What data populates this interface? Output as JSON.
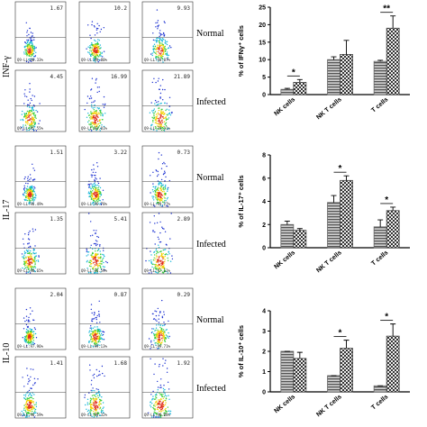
{
  "flow_panels": [
    {
      "marker": "INF-γ",
      "rows": [
        {
          "condition": "Normal",
          "cells": [
            {
              "upper": "1.67",
              "lower": "Q9-LL:98.33%"
            },
            {
              "upper": "10.2",
              "lower": "Q9-LL:89.80%"
            },
            {
              "upper": "9.93",
              "lower": "Q9-LL:90.07%"
            }
          ]
        },
        {
          "condition": "Infected",
          "cells": [
            {
              "upper": "4.45",
              "lower": "Q9-LL:95.55%"
            },
            {
              "upper": "16.99",
              "lower": "Q9-LL:83.01%"
            },
            {
              "upper": "21.89",
              "lower": "Q9-LL:78.11%"
            }
          ]
        }
      ]
    },
    {
      "marker": "IL-17",
      "rows": [
        {
          "condition": "Normal",
          "cells": [
            {
              "upper": "1.51",
              "lower": "Q9-LL:98.49%"
            },
            {
              "upper": "3.22",
              "lower": "Q9-LL:96.78%"
            },
            {
              "upper": "0.73",
              "lower": "Q9-LL:99.27%"
            }
          ]
        },
        {
          "condition": "Infected",
          "cells": [
            {
              "upper": "1.35",
              "lower": "Q9-LL:98.65%"
            },
            {
              "upper": "5.41",
              "lower": "Q9-LL:94.59%"
            },
            {
              "upper": "2.89",
              "lower": "Q9-LL:97.11%"
            }
          ]
        }
      ]
    },
    {
      "marker": "IL-10",
      "rows": [
        {
          "condition": "Normal",
          "cells": [
            {
              "upper": "2.04",
              "lower": "Q9-LL:97.96%"
            },
            {
              "upper": "0.87",
              "lower": "Q9-LL:99.13%"
            },
            {
              "upper": "0.29",
              "lower": "Q9-LL:99.71%"
            }
          ]
        },
        {
          "condition": "Infected",
          "cells": [
            {
              "upper": "1.41",
              "lower": "Q9-LL:98.59%"
            },
            {
              "upper": "1.68",
              "lower": "Q9-LL:98.32%"
            },
            {
              "upper": "1.92",
              "lower": "Q9-LL:98.08%"
            }
          ]
        }
      ]
    }
  ],
  "chart_data": [
    {
      "type": "bar",
      "y_label": "% of IFNγ⁺ cells",
      "categories": [
        "NK cells",
        "NK T cells",
        "T cells"
      ],
      "series": [
        {
          "color": "#666666",
          "values": [
            1.5,
            10,
            9.5
          ],
          "errors": [
            0.3,
            0.8,
            0.3
          ]
        },
        {
          "color": "#444444",
          "values": [
            3.5,
            11.5,
            19
          ],
          "errors": [
            0.8,
            4,
            3.5
          ]
        }
      ],
      "ylim": [
        0,
        25
      ],
      "yticks": [
        0,
        5,
        10,
        15,
        20,
        25
      ],
      "annotations": [
        {
          "text": "*",
          "category": "NK cells"
        },
        {
          "text": "**",
          "category": "T cells"
        }
      ]
    },
    {
      "type": "bar",
      "y_label": "% of IL-17⁺ cells",
      "categories": [
        "NK cells",
        "NK T cells",
        "T cells"
      ],
      "series": [
        {
          "color": "#666666",
          "values": [
            2.0,
            3.9,
            1.8
          ],
          "errors": [
            0.3,
            0.6,
            0.6
          ]
        },
        {
          "color": "#444444",
          "values": [
            1.5,
            5.8,
            3.2
          ],
          "errors": [
            0.15,
            0.4,
            0.3
          ]
        }
      ],
      "ylim": [
        0,
        8
      ],
      "yticks": [
        0,
        2,
        4,
        6,
        8
      ],
      "annotations": [
        {
          "text": "*",
          "category": "NK T cells"
        },
        {
          "text": "*",
          "category": "T cells"
        }
      ]
    },
    {
      "type": "bar",
      "y_label": "% of IL-10⁺ cells",
      "categories": [
        "NK cells",
        "NK T cells",
        "T cells"
      ],
      "series": [
        {
          "color": "#666666",
          "values": [
            2.0,
            0.8,
            0.3
          ],
          "errors": [
            0,
            0,
            0
          ]
        },
        {
          "color": "#444444",
          "values": [
            1.65,
            2.15,
            2.75
          ],
          "errors": [
            0.3,
            0.4,
            0.6
          ]
        }
      ],
      "ylim": [
        0,
        4
      ],
      "yticks": [
        0,
        1,
        2,
        3,
        4
      ],
      "annotations": [
        {
          "text": "*",
          "category": "NK T cells"
        },
        {
          "text": "*",
          "category": "T cells"
        }
      ]
    }
  ]
}
